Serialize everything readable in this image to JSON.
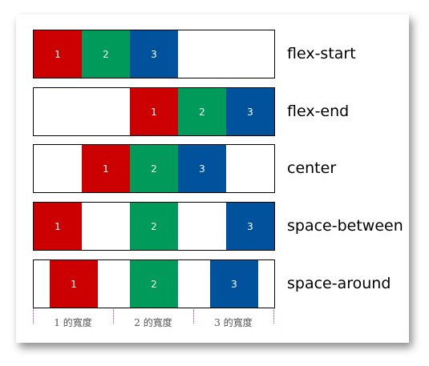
{
  "rows": [
    {
      "label": "flex-start",
      "items": [
        "1",
        "2",
        "3"
      ]
    },
    {
      "label": "flex-end",
      "items": [
        "1",
        "2",
        "3"
      ]
    },
    {
      "label": "center",
      "items": [
        "1",
        "2",
        "3"
      ]
    },
    {
      "label": "space-between",
      "items": [
        "1",
        "2",
        "3"
      ]
    },
    {
      "label": "space-around",
      "items": [
        "1",
        "2",
        "3"
      ]
    }
  ],
  "ruler": {
    "labels": [
      "1 的寬度",
      "2 的寬度",
      "3 的寬度"
    ]
  },
  "colors": {
    "item1": "#cc0000",
    "item2": "#009a5a",
    "item3": "#00529c"
  }
}
